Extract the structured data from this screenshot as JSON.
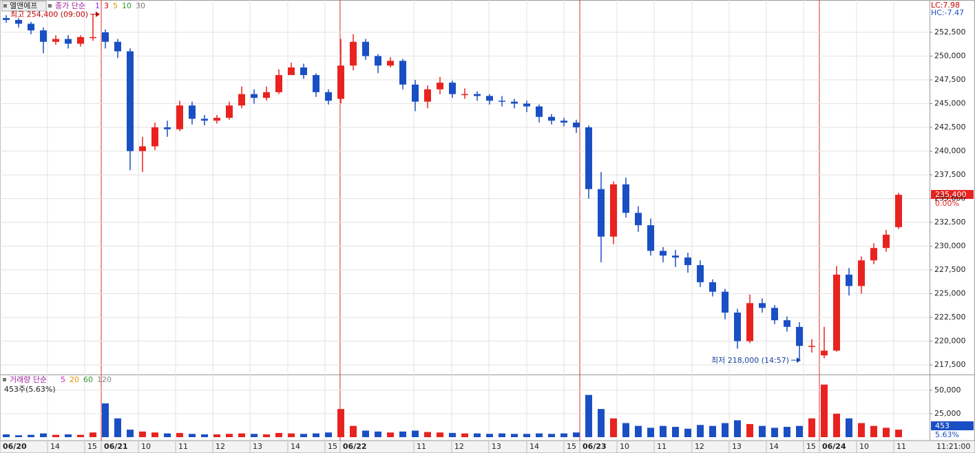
{
  "symbol": "엘앤에프",
  "price_legend": {
    "label": "종가 단순",
    "periods": [
      {
        "name": "1",
        "color": "#8a2be2"
      },
      {
        "name": "3",
        "color": "#d00000"
      },
      {
        "name": "5",
        "color": "#e89000"
      },
      {
        "name": "10",
        "color": "#2a9a2a"
      },
      {
        "name": "30",
        "color": "#777777"
      }
    ]
  },
  "volume_legend": {
    "label": "거래량 단순",
    "periods": [
      {
        "name": "5",
        "color": "#c020c0"
      },
      {
        "name": "20",
        "color": "#e89000"
      },
      {
        "name": "60",
        "color": "#2a9a2a"
      },
      {
        "name": "120",
        "color": "#888888"
      }
    ]
  },
  "time_label": "11:21:00",
  "chart_data": [
    {
      "type": "candlestick",
      "open": [
        254000,
        253800,
        253400,
        252700,
        251500,
        251800,
        251300,
        252000,
        252500,
        251500,
        250500,
        240000,
        240500,
        242500,
        242300,
        244800,
        243400,
        243200,
        243500,
        244800,
        246000,
        245600,
        246200,
        248000,
        248800,
        248000,
        246200,
        245500,
        249000,
        251500,
        250000,
        249000,
        249500,
        247000,
        245200,
        246500,
        247200,
        246000,
        246000,
        245800,
        245300,
        245200,
        245000,
        244700,
        243600,
        243200,
        243000,
        242500,
        236000,
        231000,
        236500,
        233500,
        232200,
        229500,
        229000,
        228800,
        228000,
        226200,
        225200,
        223000,
        220000,
        224000,
        223500,
        222200,
        221500,
        219500,
        218500,
        219000,
        227000,
        225800,
        228500,
        229800,
        232000
      ],
      "high": [
        254300,
        254000,
        253600,
        253000,
        252200,
        252200,
        252200,
        254400,
        252800,
        251800,
        250800,
        241500,
        243000,
        243200,
        245300,
        245200,
        243800,
        243800,
        245200,
        246800,
        246500,
        246800,
        248600,
        249300,
        249200,
        248200,
        246500,
        251800,
        252300,
        251800,
        250200,
        249900,
        249700,
        247500,
        246900,
        247800,
        247400,
        246600,
        246300,
        246000,
        245800,
        245500,
        245300,
        244900,
        243900,
        243500,
        243300,
        242700,
        237800,
        236800,
        237200,
        234200,
        232900,
        229900,
        229600,
        229300,
        228500,
        226500,
        225500,
        223400,
        224900,
        224500,
        223800,
        222600,
        222000,
        220200,
        221500,
        227900,
        227700,
        228900,
        230300,
        231700,
        235600
      ],
      "low": [
        253500,
        253000,
        252300,
        250300,
        251200,
        250800,
        251000,
        251600,
        250800,
        249800,
        238000,
        237800,
        240100,
        241500,
        242100,
        242800,
        242700,
        242900,
        243300,
        244500,
        245000,
        245300,
        246000,
        248200,
        247600,
        245700,
        244900,
        245000,
        248500,
        249600,
        248200,
        248800,
        246500,
        244200,
        244500,
        246000,
        245600,
        245500,
        245300,
        244900,
        244700,
        244500,
        244100,
        243000,
        242800,
        242600,
        241900,
        235000,
        228300,
        230200,
        233000,
        231500,
        229000,
        228300,
        227800,
        227200,
        225700,
        224700,
        222300,
        219200,
        219800,
        223000,
        221800,
        221000,
        218000,
        218800,
        218200,
        218900,
        224800,
        225000,
        228100,
        229400,
        231800
      ],
      "close": [
        253800,
        253400,
        252700,
        251500,
        251800,
        251300,
        252000,
        252000,
        251500,
        250500,
        240000,
        240500,
        242500,
        242300,
        244800,
        243400,
        243200,
        243500,
        244800,
        246000,
        245600,
        246200,
        248000,
        248800,
        248000,
        246200,
        245300,
        249000,
        251500,
        250000,
        249000,
        249500,
        247000,
        245200,
        246500,
        247200,
        246000,
        246000,
        245800,
        245300,
        245200,
        245000,
        244700,
        243600,
        243200,
        243000,
        242500,
        236000,
        231000,
        236500,
        233500,
        232200,
        229500,
        229000,
        228800,
        228000,
        226200,
        225200,
        223000,
        220000,
        224000,
        223500,
        222200,
        221500,
        219500,
        219500,
        219000,
        227000,
        225800,
        228500,
        229800,
        231200,
        235400
      ],
      "up_color": "#e8231f",
      "down_color": "#1a4fc4",
      "xlim": [
        -0.5,
        74.5
      ],
      "xticks": [
        {
          "value": -0.5,
          "label": "06/20"
        },
        {
          "value": 3.33,
          "label": "14"
        },
        {
          "value": 6.33,
          "label": "15"
        },
        {
          "value": 7.67,
          "label": "06/21"
        },
        {
          "value": 10.67,
          "label": "10"
        },
        {
          "value": 13.67,
          "label": "11"
        },
        {
          "value": 16.67,
          "label": "12"
        },
        {
          "value": 19.67,
          "label": "13"
        },
        {
          "value": 22.72,
          "label": "14"
        },
        {
          "value": 25.72,
          "label": "15"
        },
        {
          "value": 26.94,
          "label": "06/22"
        },
        {
          "value": 32.89,
          "label": "11"
        },
        {
          "value": 35.94,
          "label": "12"
        },
        {
          "value": 38.94,
          "label": "13"
        },
        {
          "value": 42.0,
          "label": "14"
        },
        {
          "value": 45.0,
          "label": "15"
        },
        {
          "value": 46.28,
          "label": "06/23"
        },
        {
          "value": 49.28,
          "label": "10"
        },
        {
          "value": 52.28,
          "label": "11"
        },
        {
          "value": 55.33,
          "label": "12"
        },
        {
          "value": 58.33,
          "label": "13"
        },
        {
          "value": 61.33,
          "label": "14"
        },
        {
          "value": 64.33,
          "label": "15"
        },
        {
          "value": 65.61,
          "label": "06/24"
        },
        {
          "value": 68.61,
          "label": "10"
        },
        {
          "value": 71.61,
          "label": "11"
        }
      ],
      "day_breaks": [
        7.67,
        26.94,
        46.28,
        65.61
      ],
      "day_break_color": "#d83030",
      "ylim": [
        216560,
        255900
      ],
      "yticks": [
        {
          "value": 217500,
          "label": "217,500"
        },
        {
          "value": 220000,
          "label": "220,000"
        },
        {
          "value": 222500,
          "label": "222,500"
        },
        {
          "value": 225000,
          "label": "225,000"
        },
        {
          "value": 227500,
          "label": "227,500"
        },
        {
          "value": 230000,
          "label": "230,000"
        },
        {
          "value": 232500,
          "label": "232,500"
        },
        {
          "value": 235000,
          "label": "235,000"
        },
        {
          "value": 237500,
          "label": "237,500"
        },
        {
          "value": 240000,
          "label": "240,000"
        },
        {
          "value": 242500,
          "label": "242,500"
        },
        {
          "value": 245000,
          "label": "245,000"
        },
        {
          "value": 247500,
          "label": "247,500"
        },
        {
          "value": 250000,
          "label": "250,000"
        },
        {
          "value": 252500,
          "label": "252,500"
        }
      ],
      "grid": true,
      "annotations": [
        {
          "text": "최고 254,400 (09:00)",
          "value": 254400,
          "color": "#c00000"
        },
        {
          "text": "최저 218,000 (14:57)",
          "value": 218000,
          "color": "#1a3fa0"
        }
      ],
      "last_price": {
        "value": 235400,
        "label": "235,400"
      },
      "change_label": "0.00%",
      "lc_label": "LC:7.98",
      "hc_label": "HC:-7.47"
    },
    {
      "type": "bar",
      "values": [
        3000,
        2000,
        2500,
        4000,
        2500,
        3000,
        2500,
        5000,
        36000,
        20000,
        8000,
        6000,
        5000,
        4000,
        4500,
        3500,
        3000,
        3000,
        3500,
        4000,
        3500,
        3000,
        4500,
        4000,
        3500,
        4000,
        5000,
        30000,
        12000,
        7000,
        6000,
        5000,
        6000,
        7000,
        5500,
        5000,
        4500,
        4000,
        4000,
        3500,
        4000,
        3500,
        3500,
        4000,
        3500,
        4000,
        5000,
        45000,
        30000,
        20000,
        15000,
        12000,
        10000,
        12000,
        11000,
        9000,
        13000,
        12000,
        15000,
        18000,
        14000,
        12000,
        10000,
        11000,
        12000,
        20000,
        56000,
        25000,
        20000,
        15000,
        12000,
        10000,
        8000
      ],
      "ylim": [
        0,
        66000
      ],
      "yticks": [
        {
          "value": 25000,
          "label": "25,000"
        },
        {
          "value": 50000,
          "label": "50,000"
        }
      ],
      "info_label": "453주(5.63%)",
      "last_value": 453,
      "last_ratio_label": "5.63%"
    }
  ]
}
